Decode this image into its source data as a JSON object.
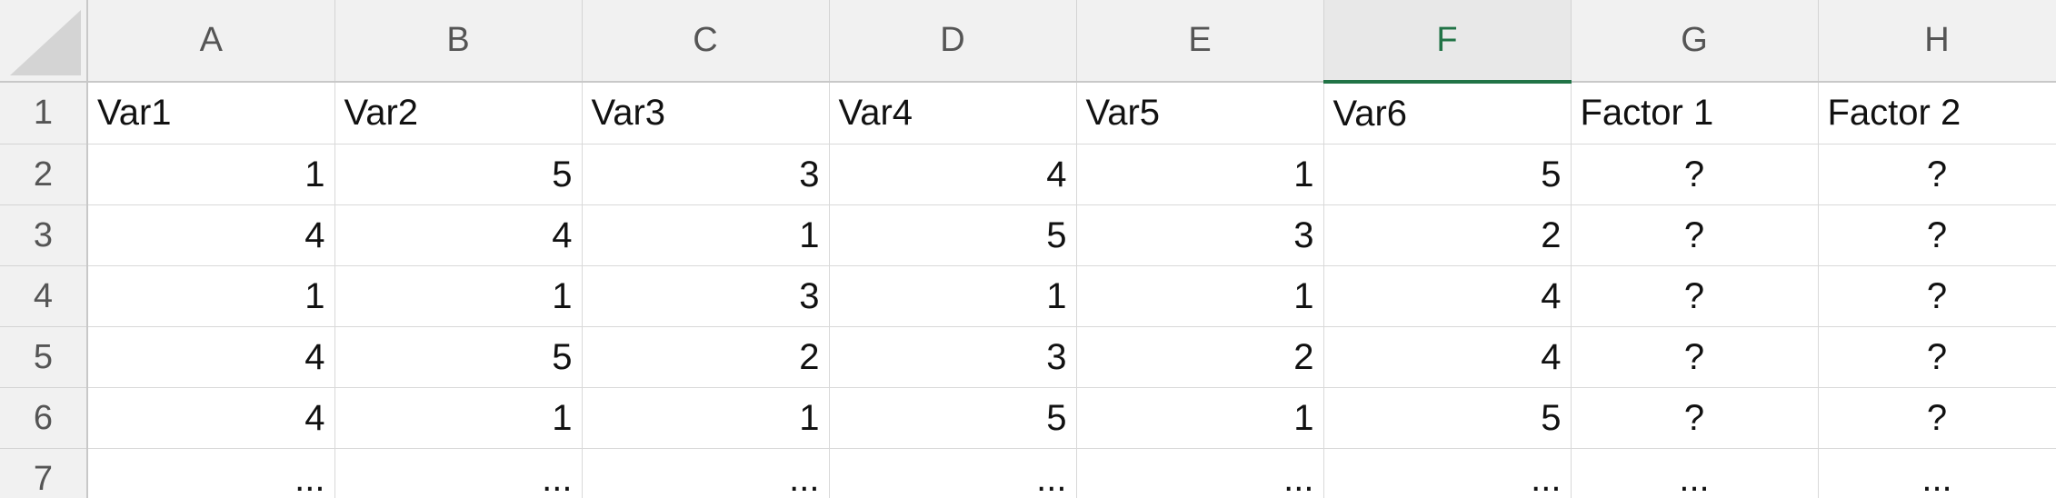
{
  "columns": [
    "A",
    "B",
    "C",
    "D",
    "E",
    "F",
    "G",
    "H"
  ],
  "active_column": "F",
  "row_numbers": [
    "1",
    "2",
    "3",
    "4",
    "5",
    "6",
    "7"
  ],
  "rows": [
    [
      "Var1",
      "Var2",
      "Var3",
      "Var4",
      "Var5",
      "Var6",
      "Factor 1",
      "Factor 2"
    ],
    [
      "1",
      "5",
      "3",
      "4",
      "1",
      "5",
      "?",
      "?"
    ],
    [
      "4",
      "4",
      "1",
      "5",
      "3",
      "2",
      "?",
      "?"
    ],
    [
      "1",
      "1",
      "3",
      "1",
      "1",
      "4",
      "?",
      "?"
    ],
    [
      "4",
      "5",
      "2",
      "3",
      "2",
      "4",
      "?",
      "?"
    ],
    [
      "4",
      "1",
      "1",
      "5",
      "1",
      "5",
      "?",
      "?"
    ],
    [
      "...",
      "...",
      "...",
      "...",
      "...",
      "...",
      "...",
      "..."
    ]
  ],
  "colors": {
    "accent": "#217346",
    "header_bg": "#f1f1f1",
    "gridline": "#d9d9d9"
  }
}
